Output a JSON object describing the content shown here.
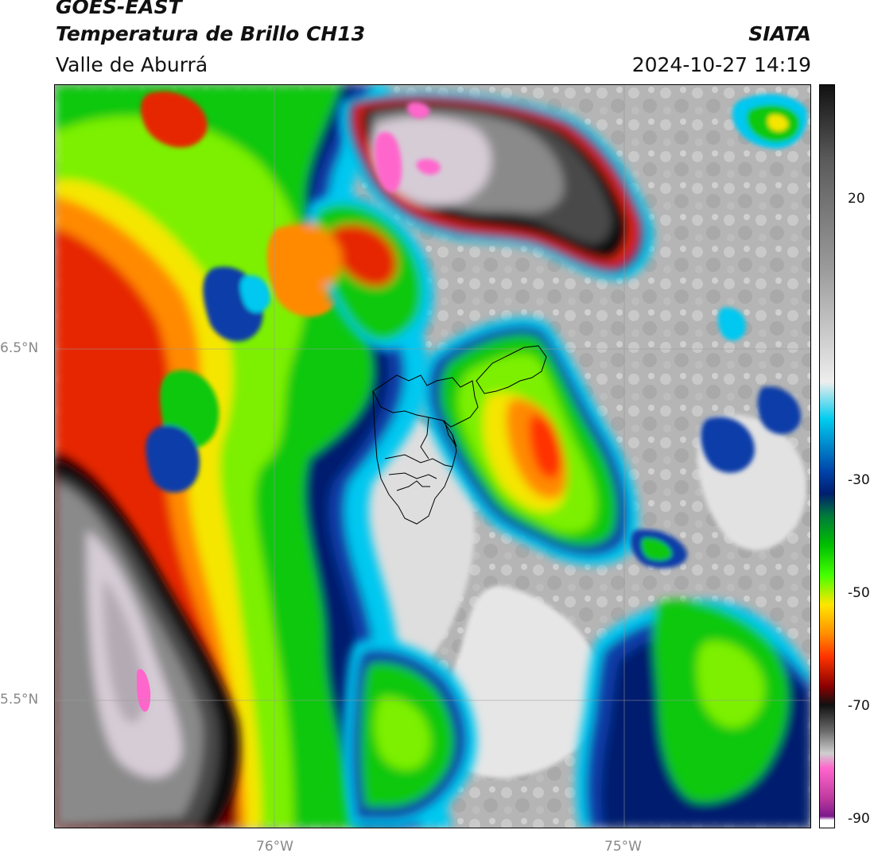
{
  "header": {
    "satellite": "GOES-EAST",
    "product": "Temperatura de Brillo CH13",
    "region": "Valle de Aburrá",
    "organization": "SIATA",
    "timestamp": "2024-10-27 14:19"
  },
  "axes": {
    "lat_labels": [
      "6.5°N",
      "5.5°N"
    ],
    "lon_labels": [
      "76°W",
      "75°W"
    ]
  },
  "colorbar": {
    "tick_labels": [
      "20",
      "-30",
      "-50",
      "-70",
      "-90"
    ],
    "color_stops": [
      {
        "t": 0.0,
        "color": "#111111"
      },
      {
        "t": 0.1,
        "color": "#5a5a5a"
      },
      {
        "t": 0.25,
        "color": "#9c9c9c"
      },
      {
        "t": 0.4,
        "color": "#eeeeee"
      },
      {
        "t": 0.45,
        "color": "#00ccee"
      },
      {
        "t": 0.52,
        "color": "#0044aa"
      },
      {
        "t": 0.55,
        "color": "#001e70"
      },
      {
        "t": 0.58,
        "color": "#007a3a"
      },
      {
        "t": 0.62,
        "color": "#00c000"
      },
      {
        "t": 0.66,
        "color": "#44ff00"
      },
      {
        "t": 0.7,
        "color": "#ffe600"
      },
      {
        "t": 0.74,
        "color": "#ff8c00"
      },
      {
        "t": 0.77,
        "color": "#ff3300"
      },
      {
        "t": 0.81,
        "color": "#8a0000"
      },
      {
        "t": 0.835,
        "color": "#111111"
      },
      {
        "t": 0.87,
        "color": "#6a6a6a"
      },
      {
        "t": 0.9,
        "color": "#cfcfcf"
      },
      {
        "t": 0.92,
        "color": "#ff66cc"
      },
      {
        "t": 0.96,
        "color": "#c03aa0"
      },
      {
        "t": 0.985,
        "color": "#7a1a8a"
      },
      {
        "t": 0.99,
        "color": "#ffffff"
      },
      {
        "t": 1.0,
        "color": "#ffffff"
      }
    ]
  },
  "palette": {
    "background_cloud_gray": "#b8b8b8",
    "light_gray": "#dcdcdc",
    "cyan": "#00c8f0",
    "blue": "#0a3ca8",
    "navy": "#001e6e",
    "dark_green": "#007a3a",
    "green": "#0fc80f",
    "lime": "#7cf000",
    "yellow": "#f5e600",
    "orange": "#ff8a00",
    "red": "#e62800",
    "dark_red": "#7a0000",
    "black": "#111111",
    "dark_gray": "#4a4a4a",
    "mid_gray": "#8a8a8a",
    "pale_gray": "#d6ccd6",
    "pink": "#ff66cc",
    "grid": "#999999",
    "boundary": "#000000"
  }
}
